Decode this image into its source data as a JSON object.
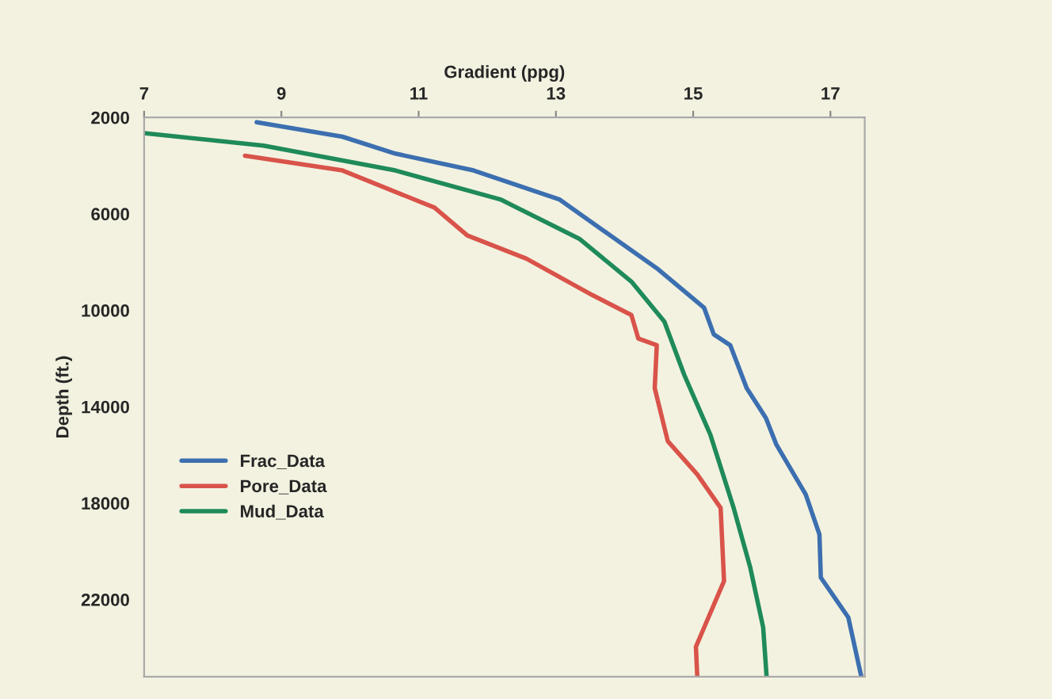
{
  "chart_data": {
    "type": "line",
    "xlabel": "Gradient (ppg)",
    "ylabel": "Depth (ft.)",
    "xlim": [
      7,
      17.5
    ],
    "xticks": [
      7,
      9,
      11,
      13,
      15,
      17
    ],
    "ylim": [
      25200,
      2000
    ],
    "yticks": [
      2000,
      6000,
      10000,
      14000,
      18000,
      22000
    ],
    "grid": false,
    "legend": "bottom left",
    "marker": "none",
    "line_style": "solid",
    "series": [
      {
        "name": "Frac_Data",
        "color": "#3c6fb0",
        "x": [
          8.64,
          9.89,
          10.66,
          11.8,
          13.05,
          14.49,
          15.16,
          15.3,
          15.54,
          15.78,
          16.06,
          16.21,
          16.64,
          16.84,
          16.86,
          17.26,
          17.45
        ],
        "values": [
          2200,
          2800,
          3500,
          4200,
          5400,
          8300,
          9900,
          11000,
          11450,
          13230,
          14470,
          15560,
          17640,
          19300,
          21090,
          22740,
          25200
        ]
      },
      {
        "name": "Pore_Data",
        "color": "#d9534a",
        "x": [
          8.47,
          9.89,
          11.23,
          11.71,
          12.57,
          13.53,
          14.1,
          14.2,
          14.47,
          14.44,
          14.63,
          15.06,
          15.4,
          15.45,
          15.16,
          15.04,
          15.06
        ],
        "values": [
          3590,
          4200,
          5740,
          6900,
          7860,
          9370,
          10200,
          11170,
          11450,
          13230,
          15430,
          16810,
          18200,
          21230,
          23160,
          23960,
          25200
        ]
      },
      {
        "name": "Mud_Data",
        "color": "#1f8a5a",
        "x": [
          7.0,
          8.74,
          10.66,
          12.19,
          13.34,
          14.1,
          14.58,
          14.87,
          15.25,
          15.59,
          15.83,
          16.02,
          16.07
        ],
        "values": [
          2650,
          3170,
          4200,
          5400,
          7030,
          8810,
          10470,
          12680,
          15160,
          18200,
          20650,
          23160,
          25200
        ]
      }
    ]
  }
}
